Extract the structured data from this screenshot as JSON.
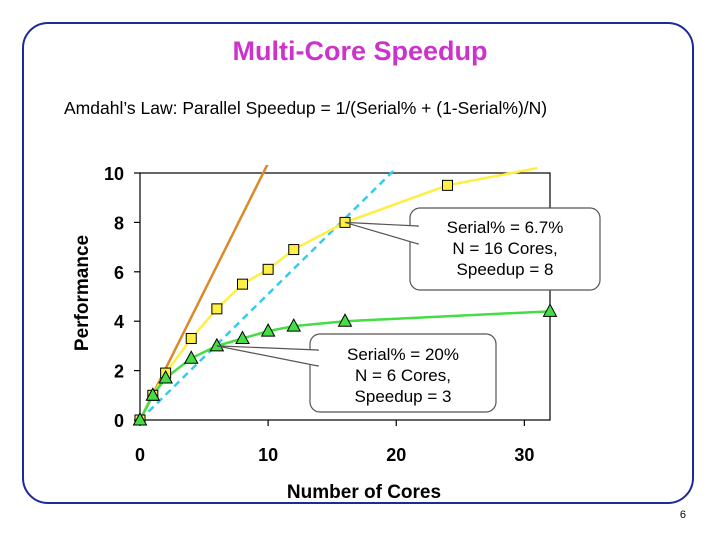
{
  "slide": {
    "title": "Multi-Core Speedup",
    "subtitle": "Amdahl’s Law: Parallel Speedup = 1/(Serial% + (1-Serial%)/N)",
    "page_number": "6"
  },
  "colors": {
    "title": "#cc33cc",
    "frame": "#1a2a9a",
    "linear": "#d98a2a",
    "serial_6_7": "#ffee44",
    "serial_20": "#44dd44",
    "dashed": "#33ccee",
    "marker_edge": "#000000"
  },
  "chart_data": {
    "type": "line",
    "xlabel": "Number of Cores",
    "ylabel": "Performance",
    "xlim": [
      0,
      32
    ],
    "ylim": [
      0,
      10
    ],
    "x_ticks": [
      0,
      10,
      20,
      30
    ],
    "y_ticks": [
      0,
      2,
      4,
      6,
      8,
      10
    ],
    "grid": false,
    "series": [
      {
        "key": "linear",
        "style": "solid line, no markers",
        "x": [
          0,
          10
        ],
        "y": [
          0,
          10.4
        ]
      },
      {
        "key": "serial_6_7",
        "style": "line with square markers",
        "x": [
          0,
          1,
          2,
          4,
          6,
          8,
          10,
          12,
          16,
          24
        ],
        "y": [
          0,
          1.0,
          1.9,
          3.3,
          4.5,
          5.5,
          6.1,
          6.9,
          8.0,
          9.5
        ],
        "curve_end": {
          "x": 31,
          "y": 10.2
        }
      },
      {
        "key": "serial_20",
        "style": "line with triangle markers",
        "x": [
          0,
          1,
          2,
          4,
          6,
          8,
          10,
          12,
          16,
          32
        ],
        "y": [
          0,
          1.0,
          1.7,
          2.5,
          3.0,
          3.3,
          3.6,
          3.8,
          4.0,
          4.4
        ]
      },
      {
        "key": "dashed",
        "style": "dashed line, no markers",
        "x": [
          0,
          20
        ],
        "y": [
          0,
          10.2
        ]
      }
    ],
    "annotations": [
      {
        "key": "callout_6_7",
        "lines": [
          "Serial% = 6.7%",
          "N = 16 Cores,",
          "Speedup = 8"
        ],
        "points_to": {
          "x": 16,
          "y": 8
        }
      },
      {
        "key": "callout_20",
        "lines": [
          "Serial% = 20%",
          "N = 6 Cores,",
          "Speedup = 3"
        ],
        "points_to": {
          "x": 6,
          "y": 3
        }
      }
    ]
  }
}
